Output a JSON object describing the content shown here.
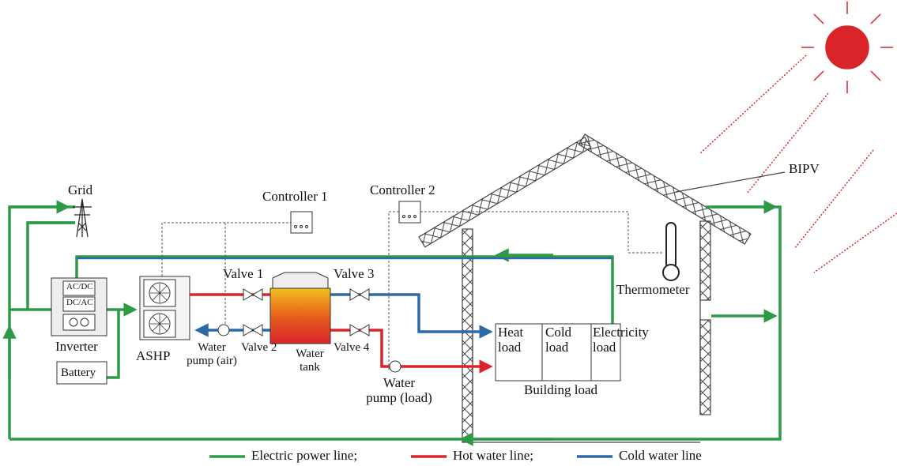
{
  "labels": {
    "grid": "Grid",
    "controller_1": "Controller 1",
    "controller_2": "Controller 2",
    "bipv": "BIPV",
    "valve_1": "Valve 1",
    "valve_2": "Valve 2",
    "valve_3": "Valve 3",
    "valve_4": "Valve 4",
    "thermometer": "Thermometer",
    "inverter": "Inverter",
    "ac_dc": "AC/DC",
    "dc_ac": "DC/AC",
    "battery": "Battery",
    "ashp": "ASHP",
    "water_pump_air": "Water\npump (air)",
    "water_tank": "Water\ntank",
    "water_pump_load": "Water\npump (load)",
    "heat_load": "Heat\nload",
    "cold_load": "Cold\nload",
    "electricity_load": "Electricity\nload",
    "building_load": "Building load"
  },
  "legend": [
    "Electric power line;",
    "Hot water line;",
    "Cold water line"
  ]
}
